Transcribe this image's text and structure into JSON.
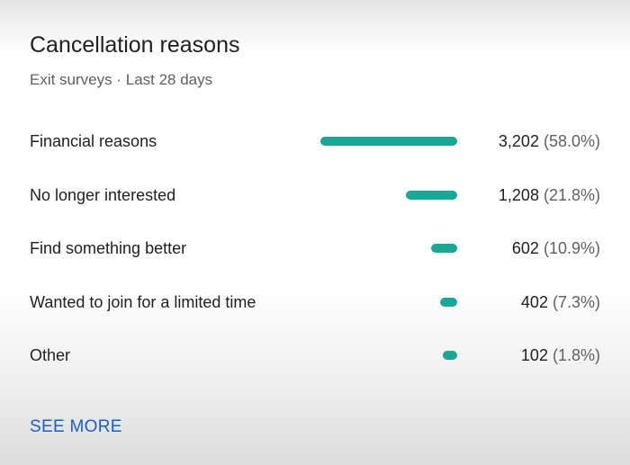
{
  "card": {
    "title": "Cancellation reasons",
    "subtitle": "Exit surveys · Last 28 days",
    "see_more_label": "SEE MORE"
  },
  "colors": {
    "bar": "#17a897",
    "link": "#1a5fc8"
  },
  "reasons": [
    {
      "label": "Financial reasons",
      "count": "3,202",
      "percent": "(58.0%)",
      "share": 0.58
    },
    {
      "label": "No longer interested",
      "count": "1,208",
      "percent": "(21.8%)",
      "share": 0.218
    },
    {
      "label": "Find something better",
      "count": "602",
      "percent": "(10.9%)",
      "share": 0.109
    },
    {
      "label": "Wanted to join for a limited time",
      "count": "402",
      "percent": "(7.3%)",
      "share": 0.073
    },
    {
      "label": "Other",
      "count": "102",
      "percent": "(1.8%)",
      "share": 0.018
    }
  ]
}
